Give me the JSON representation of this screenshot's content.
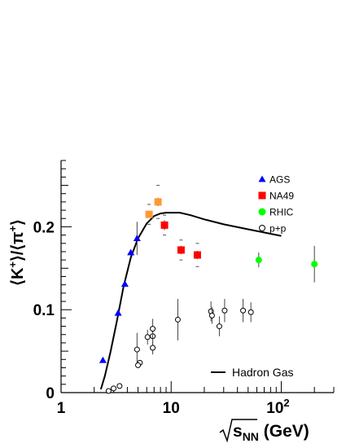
{
  "chart_data": {
    "type": "scatter",
    "xscale": "log",
    "xlim": [
      1,
      300
    ],
    "ylim": [
      0,
      0.28
    ],
    "x_ticks": [
      {
        "value": 1,
        "label": "1"
      },
      {
        "value": 10,
        "label": "10"
      },
      {
        "value": 100,
        "label": "10",
        "exponent": "2"
      }
    ],
    "y_ticks": [
      {
        "value": 0,
        "label": "0"
      },
      {
        "value": 0.1,
        "label": "0.1"
      },
      {
        "value": 0.2,
        "label": "0.2"
      }
    ],
    "xlabel": {
      "base": "s",
      "subscript": "NN",
      "unit": " (GeV)"
    },
    "ylabel": {
      "open": "⟨K",
      "open_sup": "+",
      "mid": "⟩/⟨π",
      "mid_sup": "+",
      "close": "⟩"
    },
    "series": [
      {
        "name": "AGS",
        "marker": "triangle",
        "color": "#0000ff",
        "points": [
          {
            "x": 2.4,
            "y": 0.039
          },
          {
            "x": 3.3,
            "y": 0.096
          },
          {
            "x": 3.8,
            "y": 0.131
          },
          {
            "x": 4.3,
            "y": 0.169
          },
          {
            "x": 4.9,
            "y": 0.186,
            "err": 0.02
          }
        ]
      },
      {
        "name": "NA49",
        "marker": "square",
        "color": "#ff0000",
        "points": [
          {
            "x": 8.7,
            "y": 0.202,
            "err": 0.006,
            "sys": 0.012
          },
          {
            "x": 12.3,
            "y": 0.172,
            "err": 0.005,
            "sys": 0.012
          },
          {
            "x": 17.3,
            "y": 0.166,
            "err": 0.005,
            "sys": 0.014
          }
        ]
      },
      {
        "name": "",
        "marker": "square",
        "color": "#ff9933",
        "points": [
          {
            "x": 6.3,
            "y": 0.215,
            "err": 0.004,
            "sys": 0.012
          },
          {
            "x": 7.6,
            "y": 0.23,
            "err": 0.005,
            "sys": 0.02
          }
        ]
      },
      {
        "name": "RHIC",
        "marker": "circle",
        "color": "#00ff00",
        "points": [
          {
            "x": 62.4,
            "y": 0.16,
            "err": 0.009
          },
          {
            "x": 200,
            "y": 0.155,
            "err": 0.022
          }
        ]
      },
      {
        "name": "p+p",
        "marker": "open-circle",
        "color": "#000000",
        "points": [
          {
            "x": 2.7,
            "y": 0.002
          },
          {
            "x": 3.0,
            "y": 0.005
          },
          {
            "x": 3.4,
            "y": 0.008
          },
          {
            "x": 4.9,
            "y": 0.052,
            "err": 0.02
          },
          {
            "x": 5.2,
            "y": 0.036
          },
          {
            "x": 5.0,
            "y": 0.033
          },
          {
            "x": 6.1,
            "y": 0.067,
            "err": 0.009
          },
          {
            "x": 6.8,
            "y": 0.068,
            "err": 0.012
          },
          {
            "x": 6.8,
            "y": 0.077,
            "err": 0.012
          },
          {
            "x": 6.8,
            "y": 0.054,
            "err": 0.008
          },
          {
            "x": 11.5,
            "y": 0.088,
            "err": 0.025
          },
          {
            "x": 23.0,
            "y": 0.098,
            "err": 0.012
          },
          {
            "x": 23.5,
            "y": 0.093,
            "err": 0.01
          },
          {
            "x": 27.4,
            "y": 0.08,
            "err": 0.012
          },
          {
            "x": 30.6,
            "y": 0.099,
            "err": 0.014
          },
          {
            "x": 45.0,
            "y": 0.099,
            "err": 0.014
          },
          {
            "x": 53.0,
            "y": 0.097,
            "err": 0.012
          }
        ]
      },
      {
        "name": "Hadron Gas",
        "marker": "line",
        "color": "#000000",
        "points": [
          {
            "x": 2.3,
            "y": 0.004
          },
          {
            "x": 2.5,
            "y": 0.02
          },
          {
            "x": 2.8,
            "y": 0.048
          },
          {
            "x": 3.2,
            "y": 0.085
          },
          {
            "x": 3.7,
            "y": 0.128
          },
          {
            "x": 4.3,
            "y": 0.163
          },
          {
            "x": 5.0,
            "y": 0.186
          },
          {
            "x": 6.0,
            "y": 0.204
          },
          {
            "x": 7.0,
            "y": 0.213
          },
          {
            "x": 8.0,
            "y": 0.216
          },
          {
            "x": 9.0,
            "y": 0.217
          },
          {
            "x": 10.0,
            "y": 0.217
          },
          {
            "x": 12.0,
            "y": 0.217
          },
          {
            "x": 15.0,
            "y": 0.214
          },
          {
            "x": 20.0,
            "y": 0.209
          },
          {
            "x": 30.0,
            "y": 0.203
          },
          {
            "x": 50.0,
            "y": 0.197
          },
          {
            "x": 100.0,
            "y": 0.189
          }
        ]
      }
    ],
    "legend": {
      "top_right": [
        "AGS",
        "NA49",
        "RHIC",
        "p+p"
      ],
      "bottom_right": [
        "Hadron Gas"
      ]
    }
  }
}
